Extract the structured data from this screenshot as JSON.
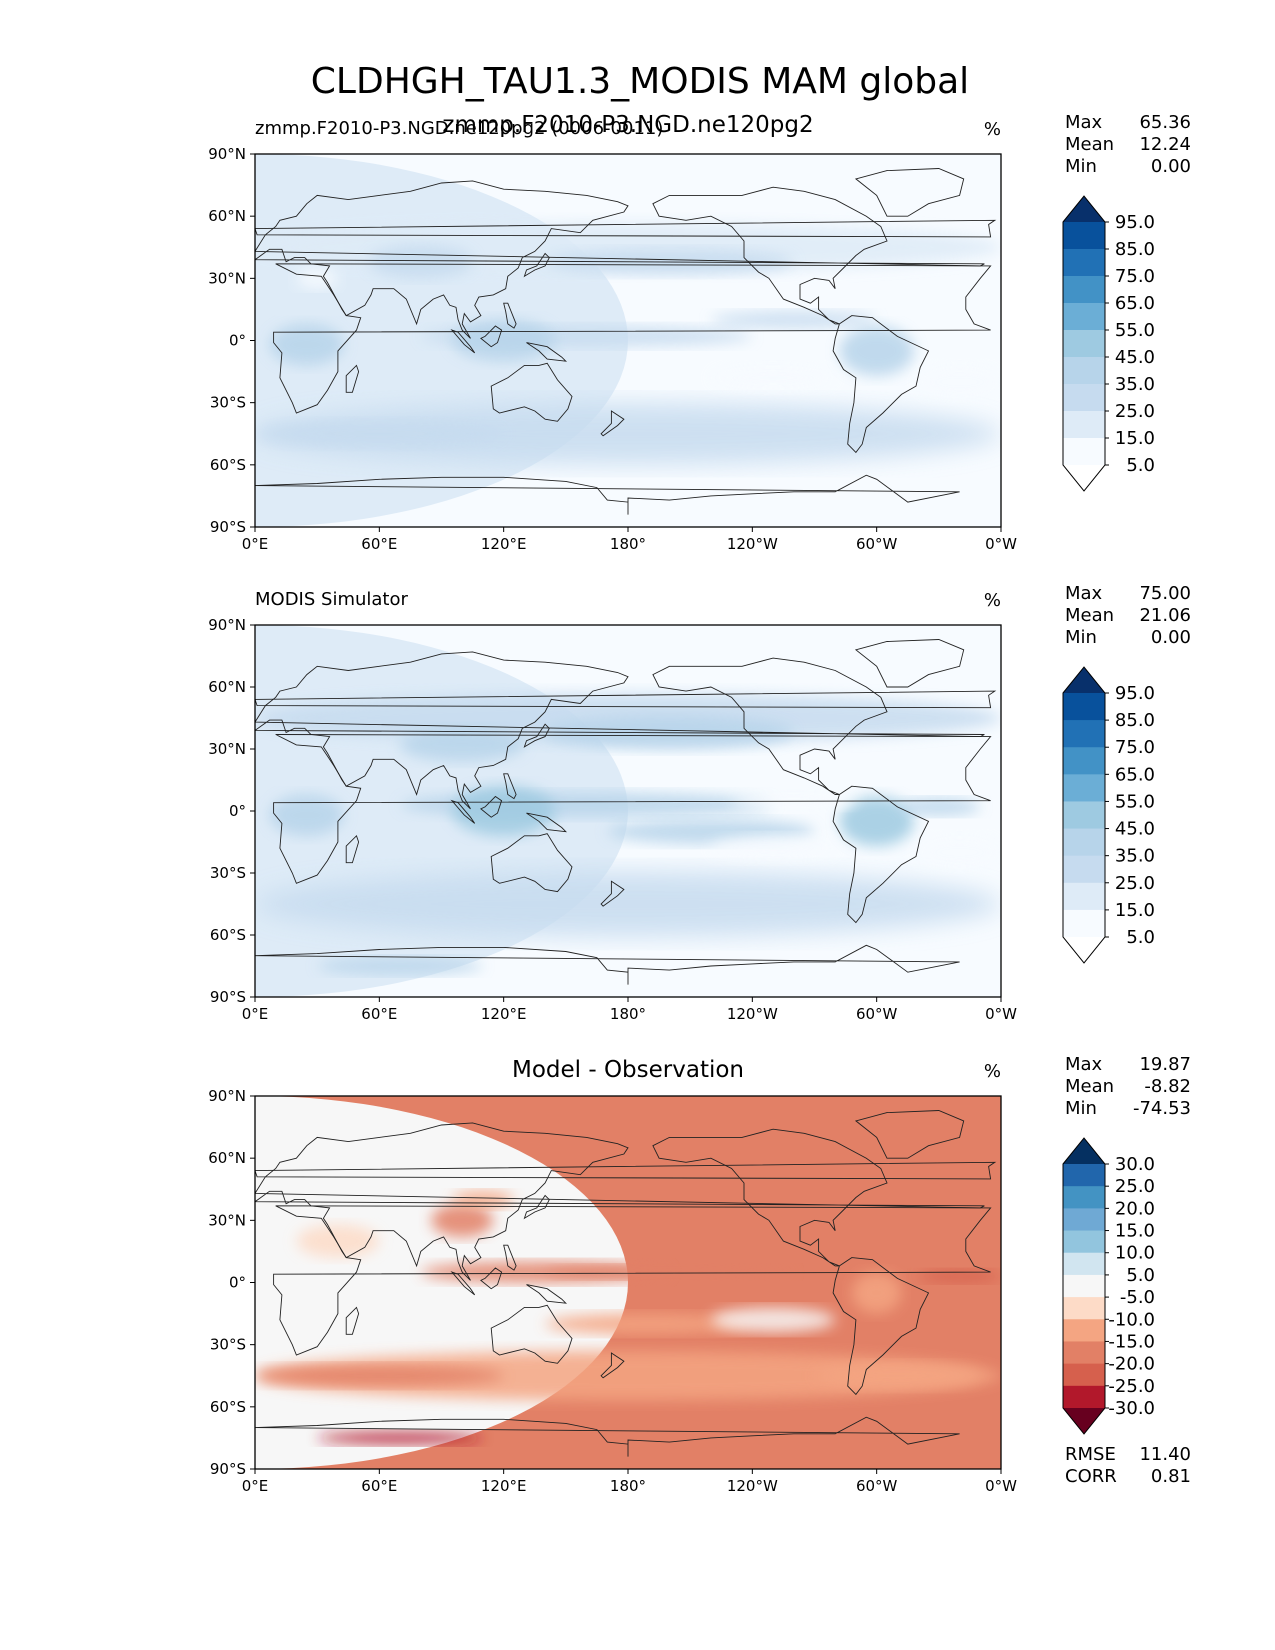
{
  "figure": {
    "title": "CLDHGH_TAU1.3_MODIS MAM global"
  },
  "lat_ticks": [
    "90°N",
    "60°N",
    "30°N",
    "0°",
    "30°S",
    "60°S",
    "90°S"
  ],
  "lon_ticks": [
    "0°E",
    "60°E",
    "120°E",
    "180°",
    "120°W",
    "60°W",
    "0°W"
  ],
  "chart_data": [
    {
      "type": "heatmap",
      "panel": "test",
      "title_left": "zmmp.F2010-P3.NGD.ne120pg2 (0006-0011)",
      "title_center": "zmmp.F2010-P3.NGD.ne120pg2",
      "units": "%",
      "stats": [
        {
          "label": "Max",
          "value": "65.36"
        },
        {
          "label": "Mean",
          "value": "12.24"
        },
        {
          "label": "Min",
          "value": "0.00"
        }
      ],
      "colorbar_levels": [
        "95.0",
        "85.0",
        "75.0",
        "65.0",
        "55.0",
        "45.0",
        "35.0",
        "25.0",
        "15.0",
        "5.0"
      ],
      "colorbar_colors": [
        "#08306b",
        "#08519c",
        "#2171b5",
        "#4292c6",
        "#6baed6",
        "#9ecae1",
        "#b7d4ea",
        "#c6dbef",
        "#deebf7",
        "#f7fbff",
        "#ffffff"
      ],
      "colorbar_extend": "both",
      "xlim": [
        0,
        360
      ],
      "ylim": [
        -90,
        90
      ]
    },
    {
      "type": "heatmap",
      "panel": "reference",
      "title_left": "MODIS Simulator",
      "units": "%",
      "stats": [
        {
          "label": "Max",
          "value": "75.00"
        },
        {
          "label": "Mean",
          "value": "21.06"
        },
        {
          "label": "Min",
          "value": "0.00"
        }
      ],
      "colorbar_levels": [
        "95.0",
        "85.0",
        "75.0",
        "65.0",
        "55.0",
        "45.0",
        "35.0",
        "25.0",
        "15.0",
        "5.0"
      ],
      "colorbar_colors": [
        "#08306b",
        "#08519c",
        "#2171b5",
        "#4292c6",
        "#6baed6",
        "#9ecae1",
        "#b7d4ea",
        "#c6dbef",
        "#deebf7",
        "#f7fbff",
        "#ffffff"
      ],
      "colorbar_extend": "both",
      "xlim": [
        0,
        360
      ],
      "ylim": [
        -90,
        90
      ]
    },
    {
      "type": "heatmap",
      "panel": "difference",
      "title_center": "Model - Observation",
      "units": "%",
      "stats": [
        {
          "label": "Max",
          "value": "19.87"
        },
        {
          "label": "Mean",
          "value": "-8.82"
        },
        {
          "label": "Min",
          "value": "-74.53"
        }
      ],
      "colorbar_levels": [
        "30.0",
        "25.0",
        "20.0",
        "15.0",
        "10.0",
        "5.0",
        "-5.0",
        "-10.0",
        "-15.0",
        "-20.0",
        "-25.0",
        "-30.0"
      ],
      "colorbar_colors": [
        "#053061",
        "#2166ac",
        "#4393c3",
        "#6fa9d4",
        "#92c5de",
        "#d1e5f0",
        "#f7f7f7",
        "#fddbc7",
        "#f4a582",
        "#e28066",
        "#d6604d",
        "#b2182b",
        "#67001f"
      ],
      "colorbar_extend": "both",
      "metrics": [
        {
          "label": "RMSE",
          "value": "11.40"
        },
        {
          "label": "CORR",
          "value": "0.81"
        }
      ],
      "xlim": [
        0,
        360
      ],
      "ylim": [
        -90,
        90
      ]
    }
  ]
}
